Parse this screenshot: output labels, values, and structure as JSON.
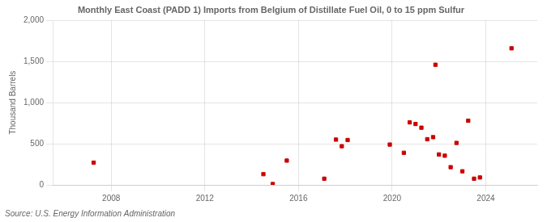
{
  "chart_data": {
    "type": "scatter",
    "title": "Monthly East Coast (PADD 1) Imports from Belgium of Distillate Fuel Oil, 0 to 15 ppm Sulfur",
    "ylabel": "Thousand Barrels",
    "annotation": "Source: U.S. Energy Information Administration",
    "x": [
      2007.25,
      2014.5,
      2014.9,
      2015.5,
      2017.1,
      2017.6,
      2017.85,
      2018.1,
      2019.9,
      2020.5,
      2020.75,
      2021.0,
      2021.25,
      2021.5,
      2021.75,
      2022.0,
      2022.25,
      2022.5,
      2022.75,
      2021.85,
      2023.0,
      2023.25,
      2023.5,
      2023.75,
      2025.1
    ],
    "values": [
      270,
      130,
      10,
      295,
      75,
      550,
      470,
      545,
      490,
      390,
      760,
      740,
      695,
      555,
      580,
      370,
      355,
      215,
      510,
      1460,
      165,
      780,
      75,
      90,
      1660
    ],
    "color": "#cc0000",
    "marker": "square",
    "xlim": [
      2005.5,
      2026.2
    ],
    "ylim": [
      0,
      2000
    ],
    "xticks": [
      2008,
      2012,
      2016,
      2020,
      2024
    ],
    "yticks": [
      0,
      500,
      {
        "value": 1000,
        "label": "1,000"
      },
      {
        "value": 1500,
        "label": "1,500"
      },
      {
        "value": 2000,
        "label": "2,000"
      }
    ],
    "grid": true
  }
}
